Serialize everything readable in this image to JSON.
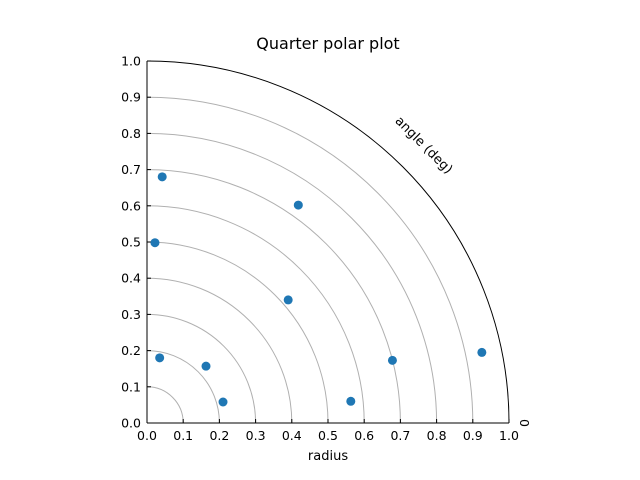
{
  "chart_data": {
    "type": "scatter",
    "title": "Quarter polar plot",
    "xlabel": "radius",
    "angle_label": "angle (deg)",
    "angle_tick_labels": [
      "0"
    ],
    "xlim": [
      0.0,
      1.0
    ],
    "ylim": [
      0.0,
      1.0
    ],
    "xticks": [
      "0.0",
      "0.1",
      "0.2",
      "0.3",
      "0.4",
      "0.5",
      "0.6",
      "0.7",
      "0.8",
      "0.9",
      "1.0"
    ],
    "yticks": [
      "0.0",
      "0.1",
      "0.2",
      "0.3",
      "0.4",
      "0.5",
      "0.6",
      "0.7",
      "0.8",
      "0.9",
      "1.0"
    ],
    "rings": [
      0.1,
      0.2,
      0.3,
      0.4,
      0.5,
      0.6,
      0.7,
      0.8,
      0.9
    ],
    "marker_color": "#1f77b4",
    "points": [
      {
        "x": 0.035,
        "y": 0.18
      },
      {
        "x": 0.21,
        "y": 0.058
      },
      {
        "x": 0.163,
        "y": 0.157
      },
      {
        "x": 0.39,
        "y": 0.34
      },
      {
        "x": 0.022,
        "y": 0.498
      },
      {
        "x": 0.042,
        "y": 0.68
      },
      {
        "x": 0.418,
        "y": 0.602
      },
      {
        "x": 0.563,
        "y": 0.06
      },
      {
        "x": 0.678,
        "y": 0.173
      },
      {
        "x": 0.925,
        "y": 0.195
      }
    ]
  }
}
